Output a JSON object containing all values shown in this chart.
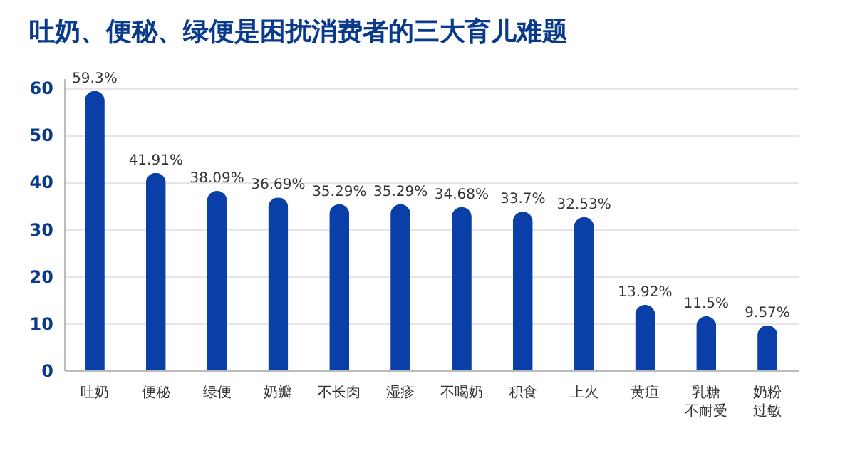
{
  "chart_data": {
    "type": "bar",
    "title": "吐奶、便秘、绿便是困扰消费者的三大育儿难题",
    "categories": [
      "吐奶",
      "便秘",
      "绿便",
      "奶瓣",
      "不长肉",
      "湿疹",
      "不喝奶",
      "积食",
      "上火",
      "黄疸",
      "乳糖不耐受",
      "奶粉过敏"
    ],
    "values": [
      59.3,
      41.91,
      38.09,
      36.69,
      35.29,
      35.29,
      34.68,
      33.7,
      32.53,
      13.92,
      11.5,
      9.57
    ],
    "value_labels": [
      "59.3%",
      "41.91%",
      "38.09%",
      "36.69%",
      "35.29%",
      "35.29%",
      "34.68%",
      "33.7%",
      "32.53%",
      "13.92%",
      "11.5%",
      "9.57%"
    ],
    "color": "#0a3fa8",
    "ylim": [
      0,
      62
    ],
    "yticks": [
      0,
      10,
      20,
      30,
      40,
      50,
      60
    ],
    "grid": "y"
  }
}
